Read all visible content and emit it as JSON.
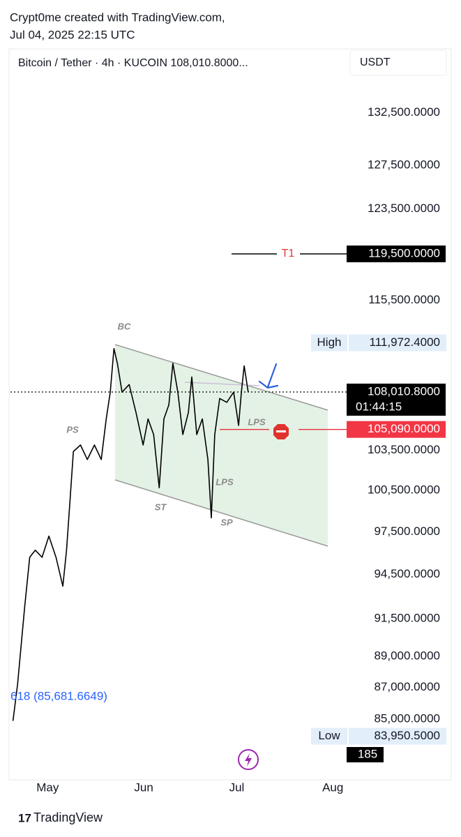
{
  "header": {
    "line1": "Crypt0me created with TradingView.com,",
    "line2": "Jul 04, 2025 22:15 UTC"
  },
  "footer": {
    "brand": "TradingView"
  },
  "chart_data": {
    "type": "line",
    "title": "Bitcoin / Tether · 4h · KUCOIN  108,010.8000...",
    "currency": "USDT",
    "color": "#000000",
    "log_scale": true,
    "x": [
      109.8,
      111.3,
      113.6,
      115.2,
      117.0,
      119.2,
      121.4,
      123.7,
      125.9,
      127.1,
      128.2,
      129.3,
      131.6,
      133.8,
      136.1,
      138.3,
      139.9,
      141.2,
      142.4,
      143.5,
      145.0,
      147.3,
      149.5,
      151.8,
      153.4,
      155.2,
      157.0,
      158.5,
      160.1,
      161.4,
      163.0,
      164.6,
      166.4,
      167.5,
      169.1,
      170.9,
      172.7,
      173.8,
      174.9,
      176.5,
      178.8,
      181.0,
      182.6,
      183.5,
      184.4,
      185.7
    ],
    "values": [
      84900,
      87200,
      92300,
      95700,
      96200,
      95700,
      97200,
      95700,
      93700,
      96200,
      99700,
      103400,
      103900,
      102800,
      103900,
      102800,
      105900,
      108000,
      111500,
      110300,
      108000,
      108600,
      106400,
      103900,
      105900,
      104700,
      100700,
      105900,
      107000,
      110300,
      108000,
      104700,
      106400,
      109200,
      104700,
      105900,
      102800,
      98500,
      104700,
      107500,
      107200,
      108000,
      105400,
      108000,
      110100,
      108000
    ],
    "xlim": [
      109,
      217
    ],
    "xticks": [
      {
        "value": 121,
        "label": "May"
      },
      {
        "value": 152,
        "label": "Jun"
      },
      {
        "value": 182,
        "label": "Jul"
      },
      {
        "value": 213,
        "label": "Aug"
      }
    ],
    "ylim": [
      81650,
      138500
    ],
    "yticks": [
      {
        "value": 132500,
        "label": "132,500.0000"
      },
      {
        "value": 127500,
        "label": "127,500.0000"
      },
      {
        "value": 123500,
        "label": "123,500.0000"
      },
      {
        "value": 115500,
        "label": "115,500.0000"
      },
      {
        "value": 103500,
        "label": "103,500.0000"
      },
      {
        "value": 100500,
        "label": "100,500.0000"
      },
      {
        "value": 97500,
        "label": "97,500.0000"
      },
      {
        "value": 94500,
        "label": "94,500.0000"
      },
      {
        "value": 91500,
        "label": "91,500.0000"
      },
      {
        "value": 89000,
        "label": "89,000.0000"
      },
      {
        "value": 87000,
        "label": "87,000.0000"
      },
      {
        "value": 85000,
        "label": "85,000.0000"
      }
    ],
    "levels": [
      {
        "name": "T1",
        "value": 119500,
        "value_label": "119,500.0000"
      },
      {
        "value": 105090,
        "value_label": "105,090.0000"
      }
    ],
    "last_price": {
      "value": 108010.8,
      "value_label": "108,010.8000",
      "countdown": "01:44:15"
    },
    "high": {
      "label": "High",
      "value": 111972.4,
      "value_label": "111,972.4000"
    },
    "low": {
      "label": "Low",
      "value": 83950.5,
      "value_label": "83,950.5000"
    },
    "fib_label": "618 (85,681.6649)",
    "volume_label": "185",
    "annotations": [
      "BC",
      "PS",
      "ST",
      "SP",
      "LPS",
      "LPS"
    ]
  }
}
